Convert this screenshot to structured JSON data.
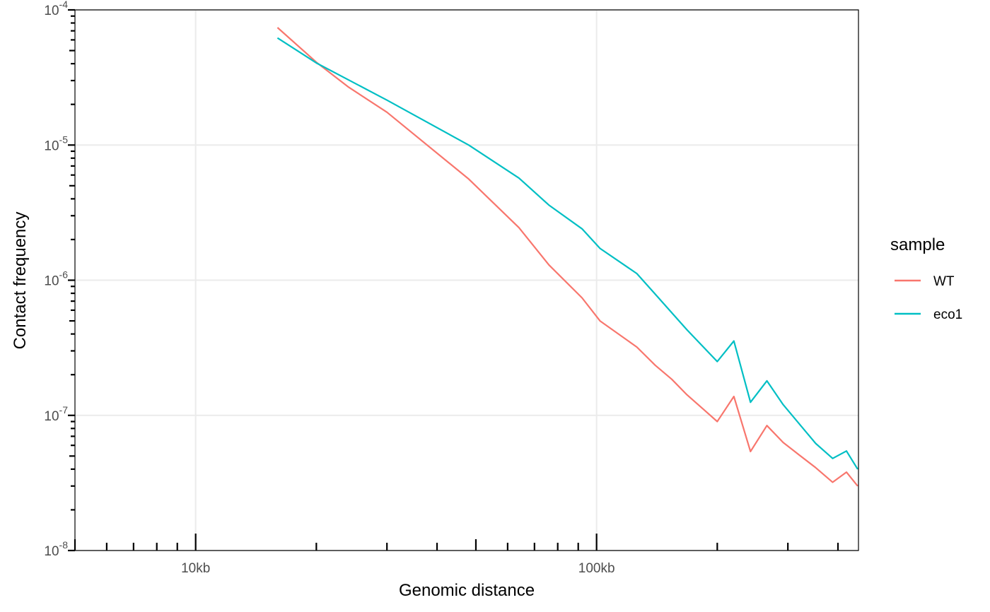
{
  "chart_data": {
    "type": "line",
    "title": "",
    "xlabel": "Genomic distance",
    "ylabel": "Contact frequency",
    "x_scale": "log10",
    "y_scale": "log10",
    "xlim": [
      5000,
      450000
    ],
    "ylim": [
      1e-08,
      0.0001
    ],
    "grid": true,
    "x_ticks": [
      {
        "value": 10000,
        "label": "10kb"
      },
      {
        "value": 100000,
        "label": "100kb"
      }
    ],
    "y_ticks": [
      {
        "value": 1e-08,
        "base": "10",
        "exp": "-8"
      },
      {
        "value": 1e-07,
        "base": "10",
        "exp": "-7"
      },
      {
        "value": 1e-06,
        "base": "10",
        "exp": "-6"
      },
      {
        "value": 1e-05,
        "base": "10",
        "exp": "-5"
      },
      {
        "value": 0.0001,
        "base": "10",
        "exp": "-4"
      }
    ],
    "legend": {
      "title": "sample",
      "position": "right"
    },
    "series": [
      {
        "name": "WT",
        "color": "#F8766D",
        "x": [
          16000,
          20000,
          24000,
          30000,
          48000,
          64000,
          76000,
          92000,
          102000,
          126000,
          140000,
          154000,
          168000,
          184000,
          200000,
          220000,
          242000,
          266000,
          292000,
          320000,
          352000,
          388000,
          420000,
          448000
        ],
        "y": [
          7.4e-05,
          4.1e-05,
          2.7e-05,
          1.75e-05,
          5.6e-06,
          2.45e-06,
          1.3e-06,
          7.4e-07,
          5e-07,
          3.2e-07,
          2.35e-07,
          1.85e-07,
          1.42e-07,
          1.12e-07,
          9e-08,
          1.38e-07,
          5.4e-08,
          8.4e-08,
          6.3e-08,
          5.1e-08,
          4.1e-08,
          3.2e-08,
          3.8e-08,
          3e-08
        ]
      },
      {
        "name": "eco1",
        "color": "#00BFC4",
        "x": [
          16000,
          20000,
          30000,
          48000,
          64000,
          76000,
          92000,
          102000,
          126000,
          140000,
          168000,
          200000,
          220000,
          242000,
          266000,
          292000,
          352000,
          388000,
          420000,
          448000
        ],
        "y": [
          6.2e-05,
          4.05e-05,
          2.15e-05,
          1e-05,
          5.7e-06,
          3.6e-06,
          2.4e-06,
          1.72e-06,
          1.12e-06,
          7.9e-07,
          4.3e-07,
          2.5e-07,
          3.55e-07,
          1.25e-07,
          1.8e-07,
          1.2e-07,
          6.2e-08,
          4.8e-08,
          5.45e-08,
          4e-08
        ]
      }
    ]
  }
}
